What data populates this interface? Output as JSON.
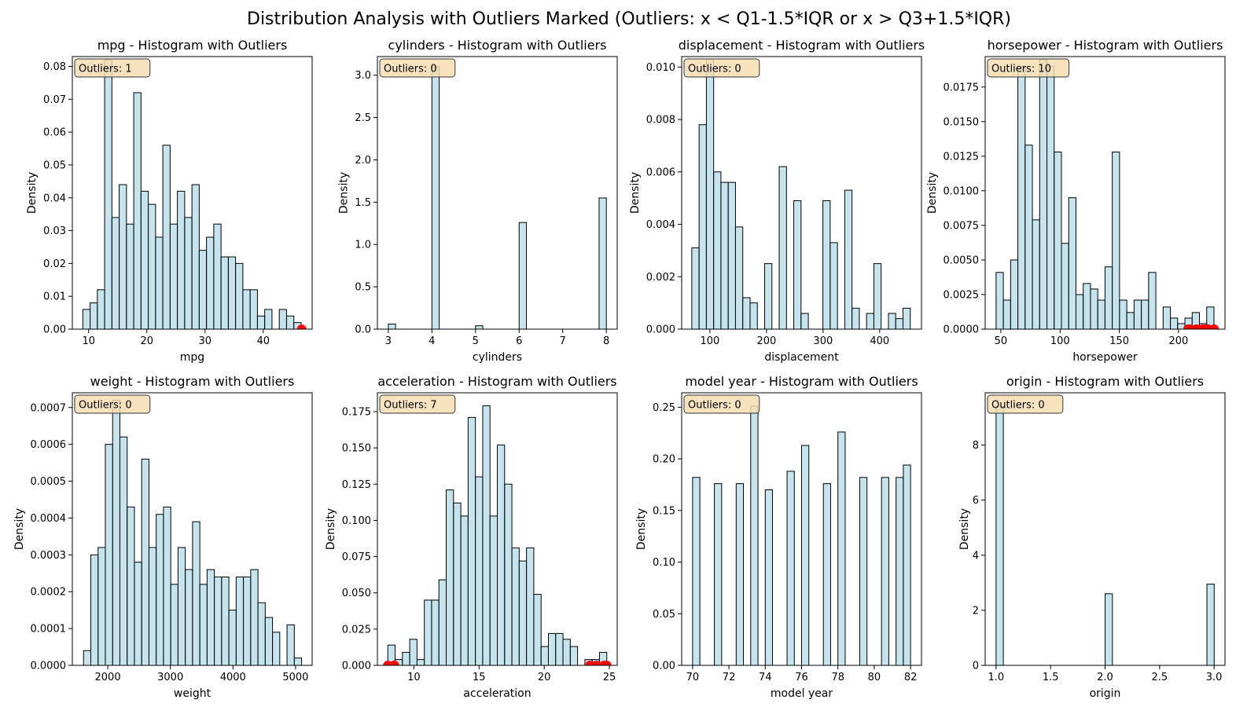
{
  "suptitle": "Distribution Analysis with Outliers Marked (Outliers: x < Q1-1.5*IQR or x > Q3+1.5*IQR)",
  "colors": {
    "bar_fill": "#add8e6",
    "bar_edge": "#000000",
    "outlier": "#ff0000",
    "badge_fill": "#f5deb3"
  },
  "chart_data": [
    {
      "type": "bar",
      "title": "mpg - Histogram with Outliers",
      "xlabel": "mpg",
      "ylabel": "Density",
      "outlier_label": "Outliers: 1",
      "xlim": [
        7.2,
        48.4
      ],
      "ylim": [
        0,
        0.083
      ],
      "xticks": [
        10,
        20,
        30,
        40
      ],
      "yticks": [
        0.0,
        0.01,
        0.02,
        0.03,
        0.04,
        0.05,
        0.06,
        0.07,
        0.08
      ],
      "ytick_labels": [
        "0.00",
        "0.01",
        "0.02",
        "0.03",
        "0.04",
        "0.05",
        "0.06",
        "0.07",
        "0.08"
      ],
      "bin_start": 9.0,
      "bin_width": 1.25,
      "values": [
        0.006,
        0.008,
        0.012,
        0.082,
        0.034,
        0.044,
        0.032,
        0.072,
        0.042,
        0.038,
        0.028,
        0.056,
        0.032,
        0.042,
        0.034,
        0.044,
        0.024,
        0.028,
        0.032,
        0.022,
        0.022,
        0.02,
        0.012,
        0.012,
        0.004,
        0.006,
        0,
        0.006,
        0.004,
        0.002
      ],
      "outliers": [
        46.6
      ]
    },
    {
      "type": "bar",
      "title": "cylinders - Histogram with Outliers",
      "xlabel": "cylinders",
      "ylabel": "Density",
      "outlier_label": "Outliers: 0",
      "xlim": [
        2.75,
        8.25
      ],
      "ylim": [
        0,
        3.22
      ],
      "xticks": [
        3,
        4,
        5,
        6,
        7,
        8
      ],
      "yticks": [
        0.0,
        0.5,
        1.0,
        1.5,
        2.0,
        2.5,
        3.0
      ],
      "ytick_labels": [
        "0.0",
        "0.5",
        "1.0",
        "1.5",
        "2.0",
        "2.5",
        "3.0"
      ],
      "bin_start": 3.0,
      "bin_width": 0.1667,
      "values": [
        0.06,
        0,
        0,
        0,
        0,
        0,
        3.1,
        0,
        0,
        0,
        0,
        0,
        0.04,
        0,
        0,
        0,
        0,
        0,
        1.26,
        0,
        0,
        0,
        0,
        0,
        0,
        0,
        0,
        0,
        0,
        1.55
      ],
      "outliers": []
    },
    {
      "type": "bar",
      "title": "displacement - Histogram with Outliers",
      "xlabel": "displacement",
      "ylabel": "Density",
      "outlier_label": "Outliers: 0",
      "xlim": [
        50.1,
        473.9
      ],
      "ylim": [
        0,
        0.0104
      ],
      "xticks": [
        100,
        200,
        300,
        400
      ],
      "yticks": [
        0.0,
        0.002,
        0.004,
        0.006,
        0.008,
        0.01
      ],
      "ytick_labels": [
        "0.000",
        "0.002",
        "0.004",
        "0.006",
        "0.008",
        "0.010"
      ],
      "bin_start": 68.0,
      "bin_width": 12.87,
      "values": [
        0.0031,
        0.0078,
        0.0103,
        0.006,
        0.0056,
        0.0056,
        0.0039,
        0.0012,
        0.001,
        0,
        0.0025,
        0,
        0.0062,
        0,
        0.0049,
        0.0006,
        0,
        0,
        0.0049,
        0.0033,
        0,
        0.0053,
        0.0008,
        0,
        0.0006,
        0.0025,
        0,
        0.0006,
        0.0004,
        0.0008
      ],
      "outliers": []
    },
    {
      "type": "bar",
      "title": "horsepower - Histogram with Outliers",
      "xlabel": "horsepower",
      "ylabel": "Density",
      "outlier_label": "Outliers: 10",
      "xlim": [
        36.8,
        239.2
      ],
      "ylim": [
        0,
        0.0197
      ],
      "xticks": [
        50,
        100,
        150,
        200
      ],
      "yticks": [
        0.0,
        0.0025,
        0.005,
        0.0075,
        0.01,
        0.0125,
        0.015,
        0.0175
      ],
      "ytick_labels": [
        "0.0000",
        "0.0025",
        "0.0050",
        "0.0075",
        "0.0100",
        "0.0125",
        "0.0150",
        "0.0175"
      ],
      "bin_start": 46.0,
      "bin_width": 6.13,
      "values": [
        0.0041,
        0.0021,
        0.005,
        0.019,
        0.0133,
        0.0079,
        0.0195,
        0.019,
        0.0128,
        0.0062,
        0.0095,
        0.0025,
        0.0033,
        0.0029,
        0.0021,
        0.0045,
        0.0128,
        0.0021,
        0.0012,
        0.0021,
        0.0021,
        0.0041,
        0,
        0.0016,
        0.0008,
        0.0004,
        0.0008,
        0.0012,
        0.0004,
        0.0016
      ],
      "outliers": [
        208,
        210,
        215,
        215,
        220,
        222,
        225,
        225,
        230,
        230
      ]
    },
    {
      "type": "bar",
      "title": "weight - Histogram with Outliers",
      "xlabel": "weight",
      "ylabel": "Density",
      "outlier_label": "Outliers: 0",
      "xlim": [
        1434,
        5265
      ],
      "ylim": [
        0,
        0.00074
      ],
      "xticks": [
        2000,
        3000,
        4000,
        5000
      ],
      "yticks": [
        0.0,
        0.0001,
        0.0002,
        0.0003,
        0.0004,
        0.0005,
        0.0006,
        0.0007
      ],
      "ytick_labels": [
        "0.0000",
        "0.0001",
        "0.0002",
        "0.0003",
        "0.0004",
        "0.0005",
        "0.0006",
        "0.0007"
      ],
      "bin_start": 1613,
      "bin_width": 116.1,
      "values": [
        4e-05,
        0.0003,
        0.00032,
        0.0006,
        0.00072,
        0.00062,
        0.00043,
        0.00028,
        0.00056,
        0.00032,
        0.00041,
        0.00043,
        0.00022,
        0.00032,
        0.00026,
        0.00039,
        0.00022,
        0.00026,
        0.00024,
        0.00024,
        0.00015,
        0.00024,
        0.00024,
        0.00026,
        0.00017,
        0.00013,
        9e-05,
        0,
        0.00011,
        2e-05
      ],
      "outliers": []
    },
    {
      "type": "bar",
      "title": "acceleration - Histogram with Outliers",
      "xlabel": "acceleration",
      "ylabel": "Density",
      "outlier_label": "Outliers: 7",
      "xlim": [
        7.2,
        25.6
      ],
      "ylim": [
        0,
        0.188
      ],
      "xticks": [
        10,
        15,
        20,
        25
      ],
      "yticks": [
        0.0,
        0.025,
        0.05,
        0.075,
        0.1,
        0.125,
        0.15,
        0.175
      ],
      "ytick_labels": [
        "0.000",
        "0.025",
        "0.050",
        "0.075",
        "0.100",
        "0.125",
        "0.150",
        "0.175"
      ],
      "bin_start": 8.0,
      "bin_width": 0.56,
      "values": [
        0.014,
        0.004,
        0.009,
        0.018,
        0.004,
        0.045,
        0.045,
        0.059,
        0.121,
        0.112,
        0.103,
        0.171,
        0.13,
        0.179,
        0.103,
        0.152,
        0.125,
        0.081,
        0.072,
        0.081,
        0.049,
        0.013,
        0.022,
        0.022,
        0.018,
        0.013,
        0,
        0.004,
        0.004,
        0.009
      ],
      "outliers": [
        8.0,
        8.5,
        8.5,
        23.5,
        24.0,
        24.6,
        24.8
      ]
    },
    {
      "type": "bar",
      "title": "model year - Histogram with Outliers",
      "xlabel": "model year",
      "ylabel": "Density",
      "outlier_label": "Outliers: 0",
      "xlim": [
        69.4,
        82.6
      ],
      "ylim": [
        0,
        0.264
      ],
      "xticks": [
        70,
        72,
        74,
        76,
        78,
        80,
        82
      ],
      "yticks": [
        0.0,
        0.05,
        0.1,
        0.15,
        0.2,
        0.25
      ],
      "ytick_labels": [
        "0.00",
        "0.05",
        "0.10",
        "0.15",
        "0.20",
        "0.25"
      ],
      "bin_start": 70.0,
      "bin_width": 0.4,
      "values": [
        0.182,
        0,
        0,
        0.176,
        0,
        0,
        0.176,
        0,
        0.251,
        0,
        0.17,
        0,
        0,
        0.188,
        0,
        0.213,
        0,
        0,
        0.176,
        0,
        0.226,
        0,
        0,
        0.182,
        0,
        0,
        0.182,
        0,
        0.182,
        0.194
      ],
      "outliers": []
    },
    {
      "type": "bar",
      "title": "origin - Histogram with Outliers",
      "xlabel": "origin",
      "ylabel": "Density",
      "outlier_label": "Outliers: 0",
      "xlim": [
        0.9,
        3.1
      ],
      "ylim": [
        0,
        9.9
      ],
      "xticks": [
        1.0,
        1.5,
        2.0,
        2.5,
        3.0
      ],
      "yticks": [
        0,
        2,
        4,
        6,
        8
      ],
      "ytick_labels": [
        "0",
        "2",
        "4",
        "6",
        "8"
      ],
      "xtick_labels": [
        "1.0",
        "1.5",
        "2.0",
        "2.5",
        "3.0"
      ],
      "bin_start": 1.0,
      "bin_width": 0.0667,
      "values": [
        9.4,
        0,
        0,
        0,
        0,
        0,
        0,
        0,
        0,
        0,
        0,
        0,
        0,
        0,
        0,
        2.6,
        0,
        0,
        0,
        0,
        0,
        0,
        0,
        0,
        0,
        0,
        0,
        0,
        0,
        2.95
      ],
      "outliers": []
    }
  ]
}
